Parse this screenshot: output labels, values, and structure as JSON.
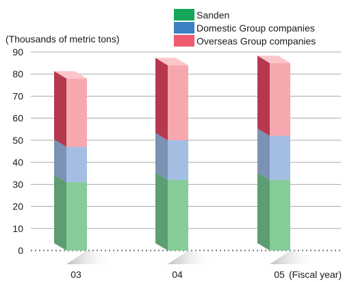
{
  "chart_data": {
    "type": "bar",
    "stacked": true,
    "style": "3d",
    "categories": [
      "03",
      "04",
      "05"
    ],
    "x_suffix": "(Fiscal year)",
    "ylabel": "(Thousands of metric tons)",
    "ylim": [
      0,
      90
    ],
    "ytick_step": 10,
    "grid": true,
    "legend_position": "top-right",
    "series": [
      {
        "name": "Sanden",
        "values": [
          31,
          32,
          32
        ],
        "color": "#16a65a",
        "front_color": "#85cc99",
        "side_color": "#5c9e72",
        "top_color": "#a9dcb6"
      },
      {
        "name": "Domestic Group companies",
        "values": [
          16,
          18,
          20
        ],
        "color": "#3c81c4",
        "front_color": "#a4bde3",
        "side_color": "#7c92b4",
        "top_color": "#c4d4ef"
      },
      {
        "name": "Overseas Group companies",
        "values": [
          31,
          34,
          33
        ],
        "color": "#ef5a6e",
        "front_color": "#f7a8ae",
        "side_color": "#b5384f",
        "top_color": "#fbc6ca"
      }
    ]
  }
}
